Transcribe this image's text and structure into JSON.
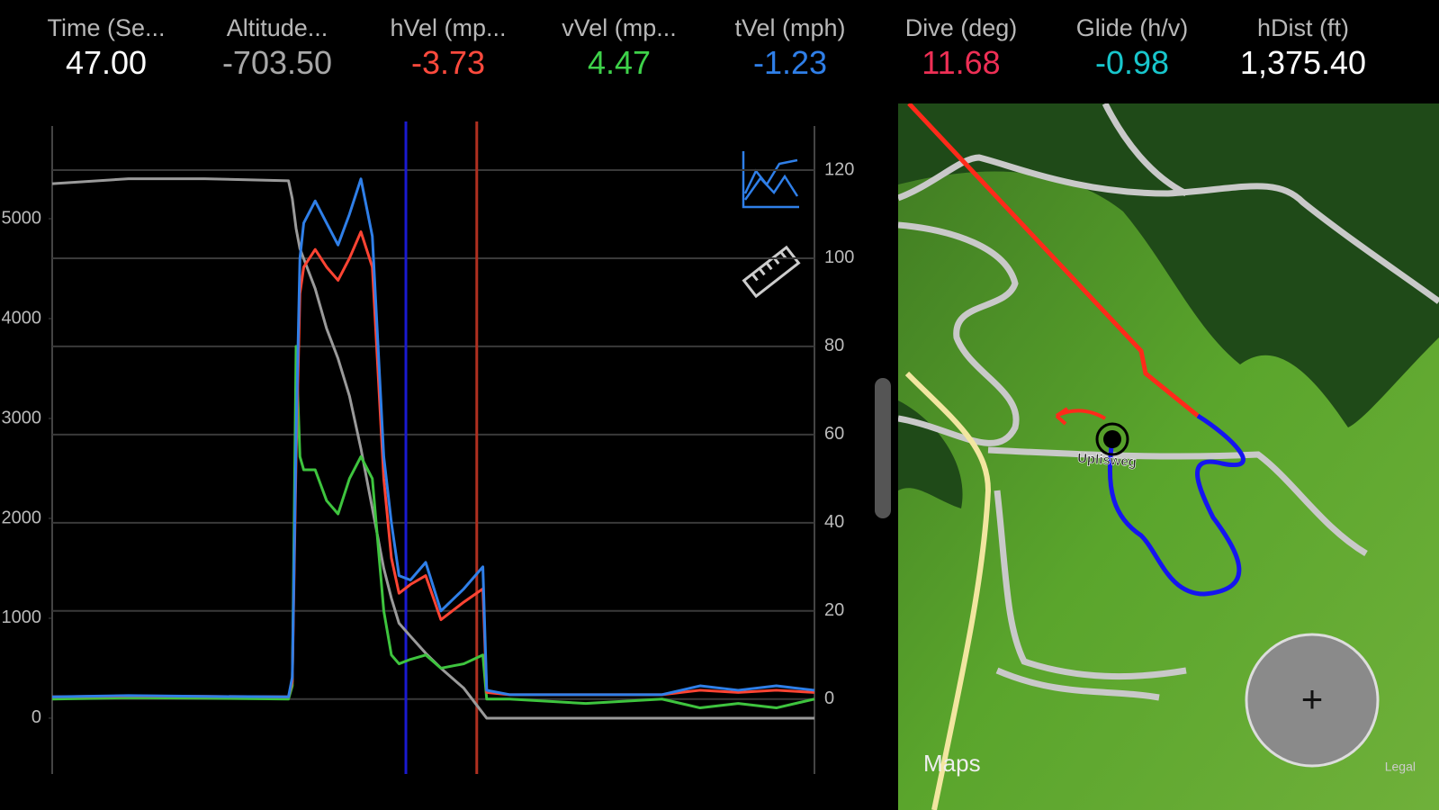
{
  "header": {
    "stats": [
      {
        "label": "Time (Se...",
        "value": "47.00",
        "color": "#ffffff"
      },
      {
        "label": "Altitude...",
        "value": "-703.50",
        "color": "#a8a8a8"
      },
      {
        "label": "hVel (mp...",
        "value": "-3.73",
        "color": "#ff4a3d"
      },
      {
        "label": "vVel (mp...",
        "value": "4.47",
        "color": "#3ed24a"
      },
      {
        "label": "tVel (mph)",
        "value": "-1.23",
        "color": "#2f7fe8"
      },
      {
        "label": "Dive (deg)",
        "value": "11.68",
        "color": "#ee2f55"
      },
      {
        "label": "Glide (h/v)",
        "value": "-0.98",
        "color": "#18c6cc"
      },
      {
        "label": "hDist (ft)",
        "value": "1,375.40",
        "color": "#ffffff"
      }
    ]
  },
  "chart_data": {
    "type": "line",
    "x": [
      0,
      10,
      20,
      31,
      31.5,
      32,
      32.5,
      33,
      34.5,
      36,
      37.5,
      39,
      40.5,
      42,
      43.5,
      44.5,
      45.5,
      47,
      49,
      51,
      54,
      56.5,
      57,
      60,
      70,
      80,
      85,
      90,
      95,
      100
    ],
    "xlim": [
      0,
      100
    ],
    "ylim": [
      -17,
      130
    ],
    "yticks": [
      0,
      20,
      40,
      60,
      80,
      100,
      120
    ],
    "y2lim": [
      -559,
      5928
    ],
    "y2ticks": [
      0,
      1000,
      2000,
      3000,
      4000,
      5000
    ],
    "grid": true,
    "series": [
      {
        "color": "#9a9a9a",
        "axis": "y2",
        "values": [
          5350,
          5400,
          5400,
          5380,
          5200,
          4900,
          4700,
          4600,
          4300,
          3900,
          3600,
          3225,
          2700,
          2100,
          1500,
          1200,
          950,
          820,
          650,
          500,
          300,
          50,
          0,
          0,
          0,
          0,
          0,
          0,
          0,
          0
        ]
      },
      {
        "color": "#3ec43e",
        "values": [
          0,
          0.3,
          0.2,
          0,
          3,
          80,
          55,
          52,
          52,
          45,
          42,
          50,
          55,
          50,
          20,
          10,
          8,
          9,
          10,
          7,
          8,
          10,
          0,
          0,
          -1,
          0,
          -2,
          -1,
          -2,
          0
        ]
      },
      {
        "color": "#ff4433",
        "values": [
          0.5,
          0.7,
          0.6,
          0.5,
          4,
          55,
          92,
          98,
          102,
          98,
          95,
          100,
          106,
          98,
          50,
          32,
          24,
          26,
          28,
          18,
          22,
          25,
          1.5,
          1,
          1,
          1,
          2,
          1.5,
          2,
          1.5
        ]
      },
      {
        "color": "#2f7fe8",
        "values": [
          0.5,
          0.8,
          0.6,
          0.5,
          5,
          60,
          100,
          108,
          113,
          108,
          103,
          110,
          118,
          105,
          55,
          40,
          28,
          27,
          31,
          20,
          25,
          30,
          2,
          1,
          1,
          1,
          3,
          2,
          3,
          2
        ]
      }
    ],
    "cursors": [
      {
        "x": 46.4,
        "color": "#1a1ad0"
      },
      {
        "x": 55.7,
        "color": "#b03020"
      }
    ]
  },
  "map": {
    "road_label": "Uplisweg",
    "brand": "Maps",
    "legal": "Legal",
    "zoom_button": "+"
  }
}
